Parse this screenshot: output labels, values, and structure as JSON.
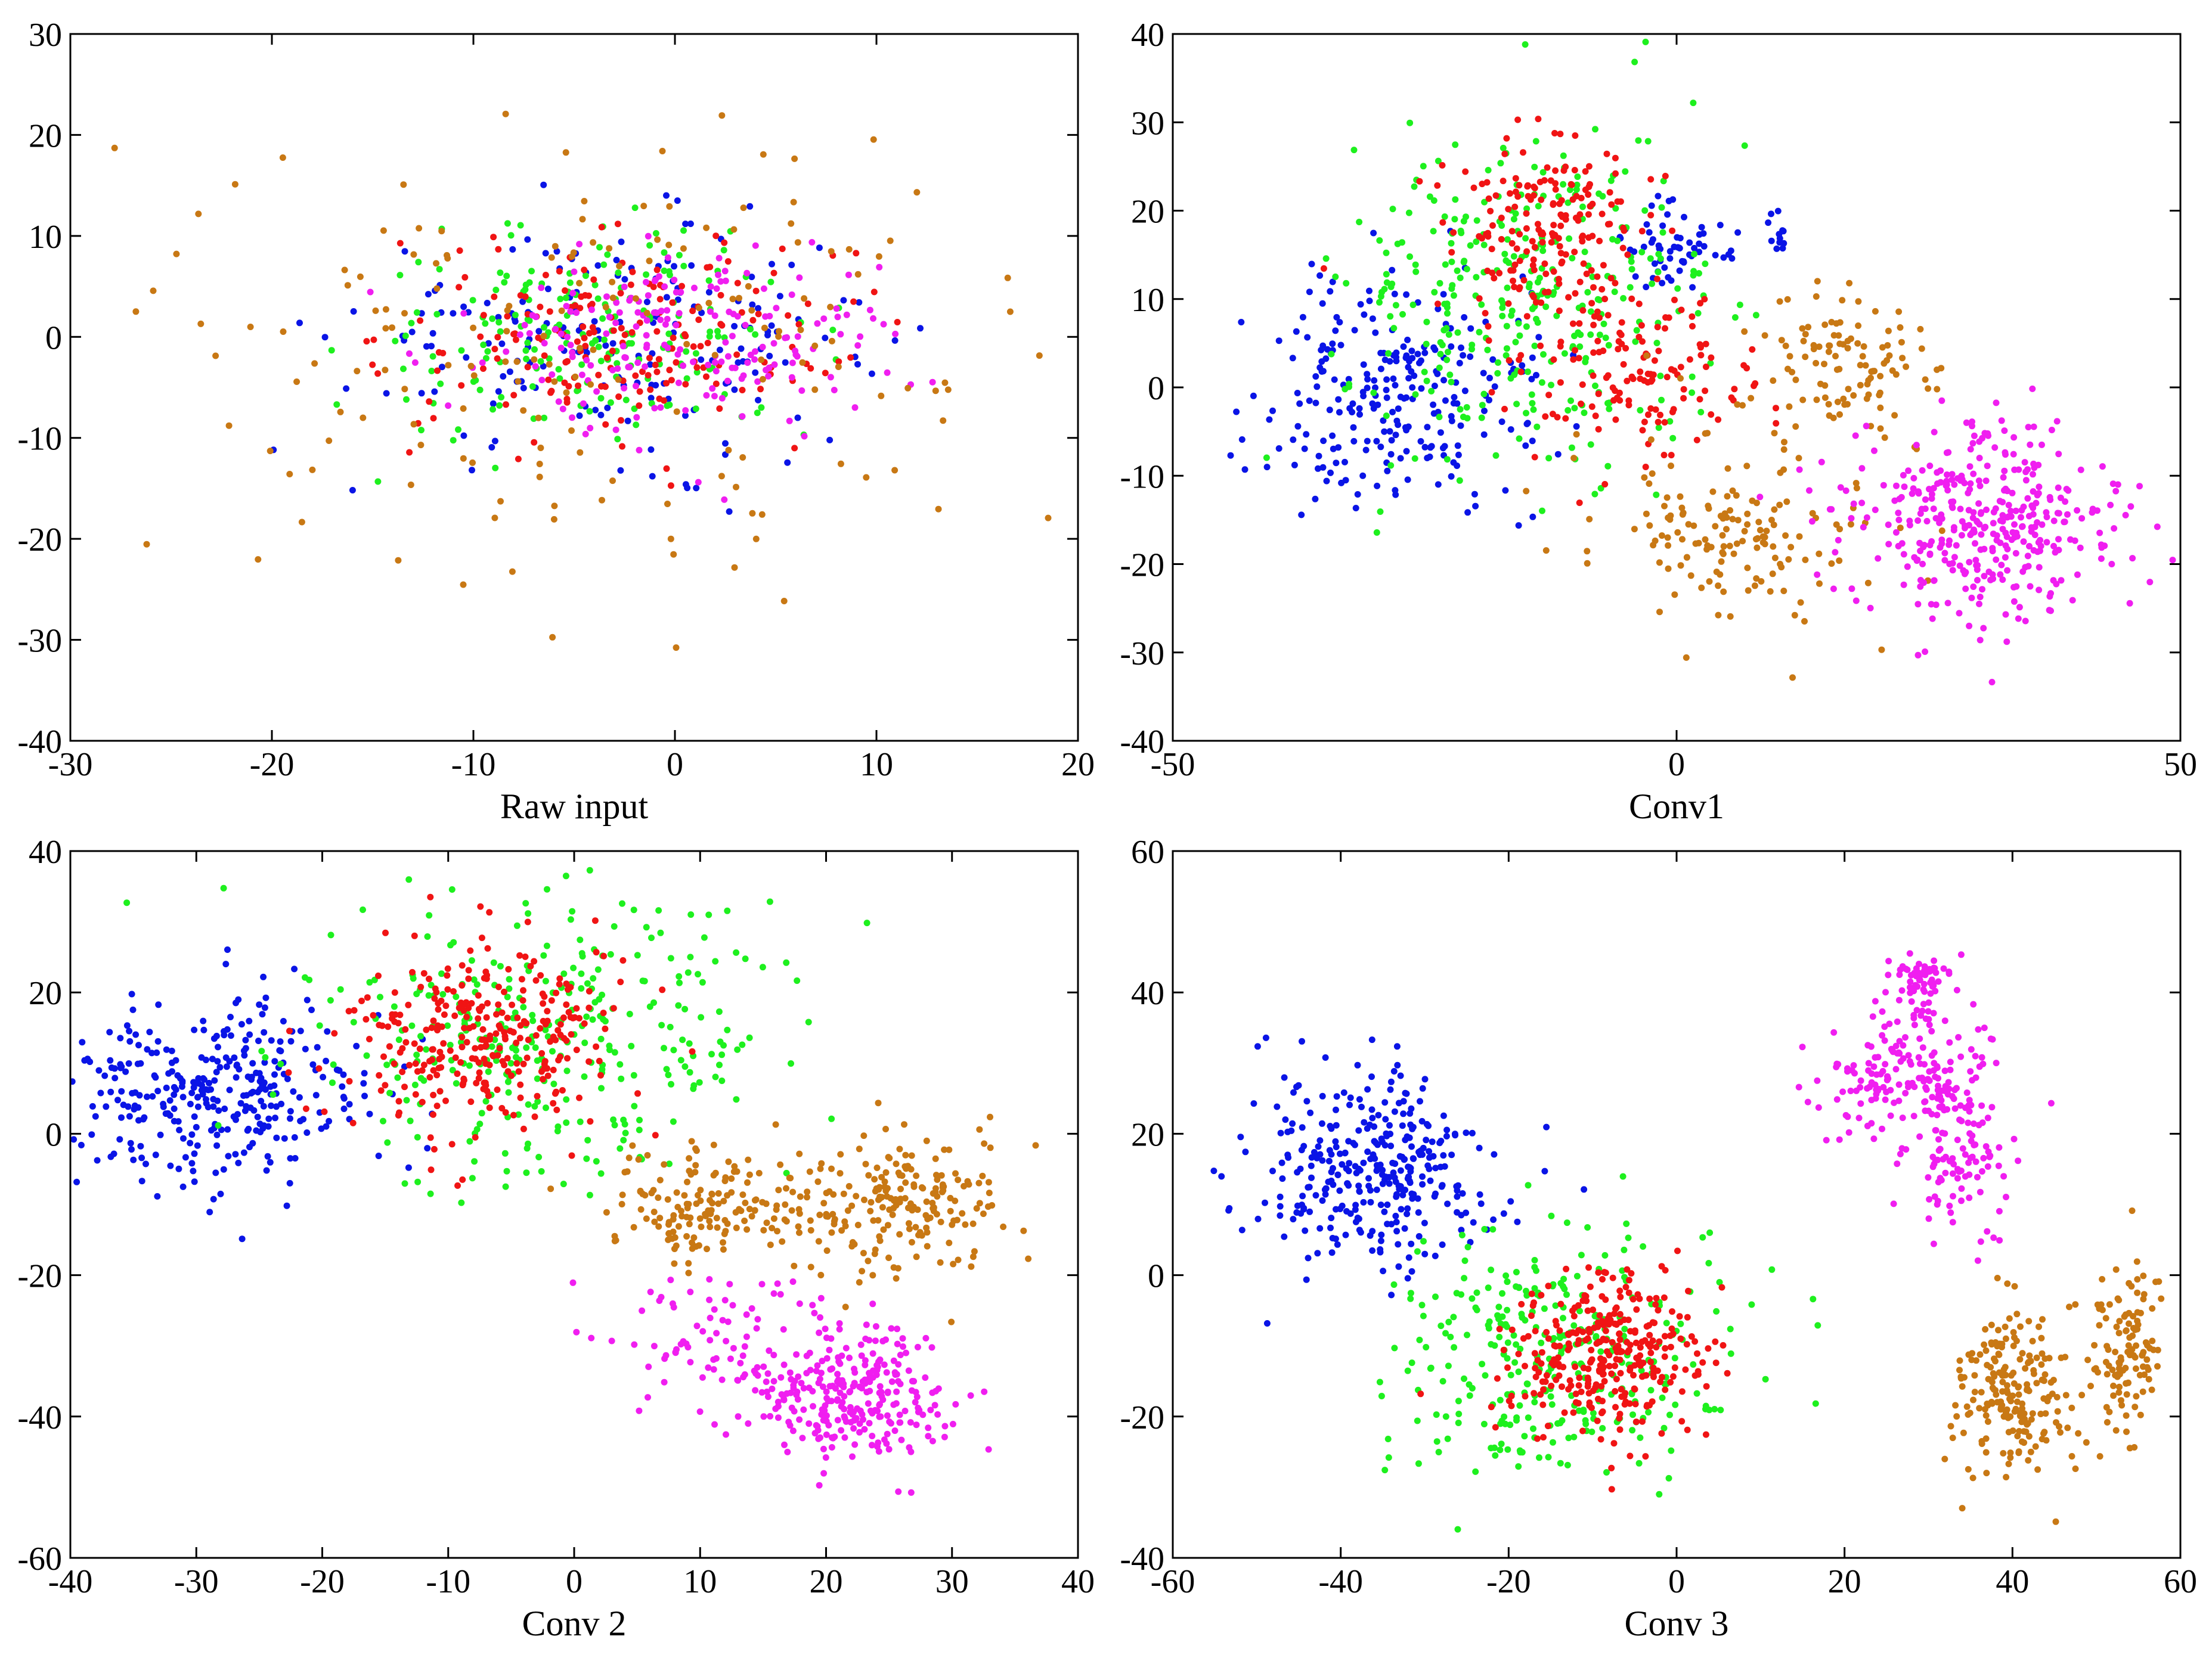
{
  "chart_data": [
    {
      "type": "scatter",
      "title": "",
      "xlabel": "Raw input",
      "ylabel": "",
      "xlim": [
        -30,
        20
      ],
      "ylim": [
        -40,
        30
      ],
      "xticks": [
        "-30",
        "-20",
        "-10",
        "0",
        "10",
        "20"
      ],
      "yticks": [
        "-40",
        "-30",
        "-20",
        "-10",
        "0",
        "10",
        "20",
        "30"
      ],
      "grid": false,
      "series": [
        {
          "name": "blue",
          "color": "#0a14e6",
          "clusters": [
            {
              "cx": -3,
              "cy": 0,
              "sx": 6.5,
              "sy": 5.5,
              "n": 190
            }
          ]
        },
        {
          "name": "green",
          "color": "#1ef01e",
          "clusters": [
            {
              "cx": -4,
              "cy": 0,
              "sx": 5.5,
              "sy": 5,
              "n": 190
            }
          ]
        },
        {
          "name": "red",
          "color": "#f01414",
          "clusters": [
            {
              "cx": -3,
              "cy": 0,
              "sx": 5.5,
              "sy": 5,
              "n": 190
            }
          ]
        },
        {
          "name": "magenta",
          "color": "#f01ef0",
          "clusters": [
            {
              "cx": 1,
              "cy": 0,
              "sx": 5.5,
              "sy": 4.8,
              "n": 190
            }
          ]
        },
        {
          "name": "orange",
          "color": "#c87814",
          "clusters": [
            {
              "cx": -3,
              "cy": -1,
              "sx": 10,
              "sy": 12,
              "n": 180
            }
          ]
        }
      ]
    },
    {
      "type": "scatter",
      "title": "",
      "xlabel": "Conv1",
      "ylabel": "",
      "xlim": [
        -50,
        50
      ],
      "ylim": [
        -40,
        40
      ],
      "xticks": [
        "-50",
        "0",
        "50"
      ],
      "yticks": [
        "-40",
        "-30",
        "-20",
        "-10",
        "0",
        "10",
        "20",
        "30",
        "40"
      ],
      "grid": false,
      "series": [
        {
          "name": "blue",
          "color": "#0a14e6",
          "clusters": [
            {
              "cx": -27,
              "cy": -1,
              "sx": 7,
              "sy": 7,
              "n": 250
            },
            {
              "cx": 0,
              "cy": 16,
              "sx": 2.5,
              "sy": 2.5,
              "n": 60
            },
            {
              "cx": 10,
              "cy": 17,
              "sx": 1,
              "sy": 1.5,
              "n": 12
            }
          ]
        },
        {
          "name": "green",
          "color": "#1ef01e",
          "clusters": [
            {
              "cx": -15,
              "cy": 10,
              "sx": 9,
              "sy": 9,
              "n": 330
            }
          ]
        },
        {
          "name": "red",
          "color": "#f01414",
          "clusters": [
            {
              "cx": -13,
              "cy": 18,
              "sx": 5,
              "sy": 5,
              "n": 180
            },
            {
              "cx": -5,
              "cy": 1,
              "sx": 6,
              "sy": 5,
              "n": 140
            }
          ]
        },
        {
          "name": "orange",
          "color": "#c87814",
          "clusters": [
            {
              "cx": 17,
              "cy": 2,
              "sx": 5,
              "sy": 4,
              "n": 110
            },
            {
              "cx": 6,
              "cy": -16,
              "sx": 7,
              "sy": 5,
              "n": 150
            }
          ]
        },
        {
          "name": "magenta",
          "color": "#f01ef0",
          "clusters": [
            {
              "cx": 30,
              "cy": -15,
              "sx": 7,
              "sy": 6,
              "n": 380
            }
          ]
        }
      ]
    },
    {
      "type": "scatter",
      "title": "",
      "xlabel": "Conv 2",
      "ylabel": "",
      "xlim": [
        -40,
        40
      ],
      "ylim": [
        -60,
        40
      ],
      "xticks": [
        "-40",
        "-30",
        "-20",
        "-10",
        "0",
        "10",
        "20",
        "30",
        "40"
      ],
      "yticks": [
        "-60",
        "-40",
        "-20",
        "0",
        "20",
        "40"
      ],
      "grid": false,
      "series": [
        {
          "name": "blue",
          "color": "#0a14e6",
          "clusters": [
            {
              "cx": -29,
              "cy": 5,
              "sx": 6,
              "sy": 7,
              "n": 330
            }
          ]
        },
        {
          "name": "green",
          "color": "#1ef01e",
          "clusters": [
            {
              "cx": -3,
              "cy": 15,
              "sx": 10,
              "sy": 10,
              "n": 330
            }
          ]
        },
        {
          "name": "red",
          "color": "#f01414",
          "clusters": [
            {
              "cx": -7,
              "cy": 13,
              "sx": 6,
              "sy": 7,
              "n": 300
            }
          ]
        },
        {
          "name": "orange",
          "color": "#c87814",
          "clusters": [
            {
              "cx": 10,
              "cy": -10,
              "sx": 3.5,
              "sy": 4,
              "n": 140
            },
            {
              "cx": 25,
              "cy": -10,
              "sx": 5,
              "sy": 5,
              "n": 220
            }
          ]
        },
        {
          "name": "magenta",
          "color": "#f01ef0",
          "clusters": [
            {
              "cx": 22,
              "cy": -37,
              "sx": 4,
              "sy": 5,
              "n": 280
            },
            {
              "cx": 11,
              "cy": -28,
              "sx": 4,
              "sy": 5,
              "n": 80
            }
          ]
        }
      ]
    },
    {
      "type": "scatter",
      "title": "",
      "xlabel": "Conv 3",
      "ylabel": "",
      "xlim": [
        -60,
        60
      ],
      "ylim": [
        -40,
        60
      ],
      "xticks": [
        "-60",
        "-40",
        "-20",
        "0",
        "20",
        "40",
        "60"
      ],
      "yticks": [
        "-40",
        "-20",
        "0",
        "20",
        "40",
        "60"
      ],
      "grid": false,
      "series": [
        {
          "name": "blue",
          "color": "#0a14e6",
          "clusters": [
            {
              "cx": -36,
              "cy": 15,
              "sx": 7,
              "sy": 7,
              "n": 340
            }
          ]
        },
        {
          "name": "green",
          "color": "#1ef01e",
          "clusters": [
            {
              "cx": -14,
              "cy": -12,
              "sx": 10,
              "sy": 9,
              "n": 330
            }
          ]
        },
        {
          "name": "red",
          "color": "#f01414",
          "clusters": [
            {
              "cx": -8,
              "cy": -11,
              "sx": 6,
              "sy": 6,
              "n": 320
            }
          ]
        },
        {
          "name": "magenta",
          "color": "#f01ef0",
          "clusters": [
            {
              "cx": 29,
              "cy": 42,
              "sx": 2,
              "sy": 1.5,
              "n": 60
            },
            {
              "cx": 28,
              "cy": 28,
              "sx": 5,
              "sy": 5,
              "n": 200
            },
            {
              "cx": 34,
              "cy": 15,
              "sx": 3,
              "sy": 5,
              "n": 80
            }
          ]
        },
        {
          "name": "orange",
          "color": "#c87814",
          "clusters": [
            {
              "cx": 40,
              "cy": -17,
              "sx": 4,
              "sy": 6,
              "n": 200
            },
            {
              "cx": 53,
              "cy": -11,
              "sx": 2.5,
              "sy": 6,
              "n": 120
            }
          ]
        }
      ]
    }
  ]
}
